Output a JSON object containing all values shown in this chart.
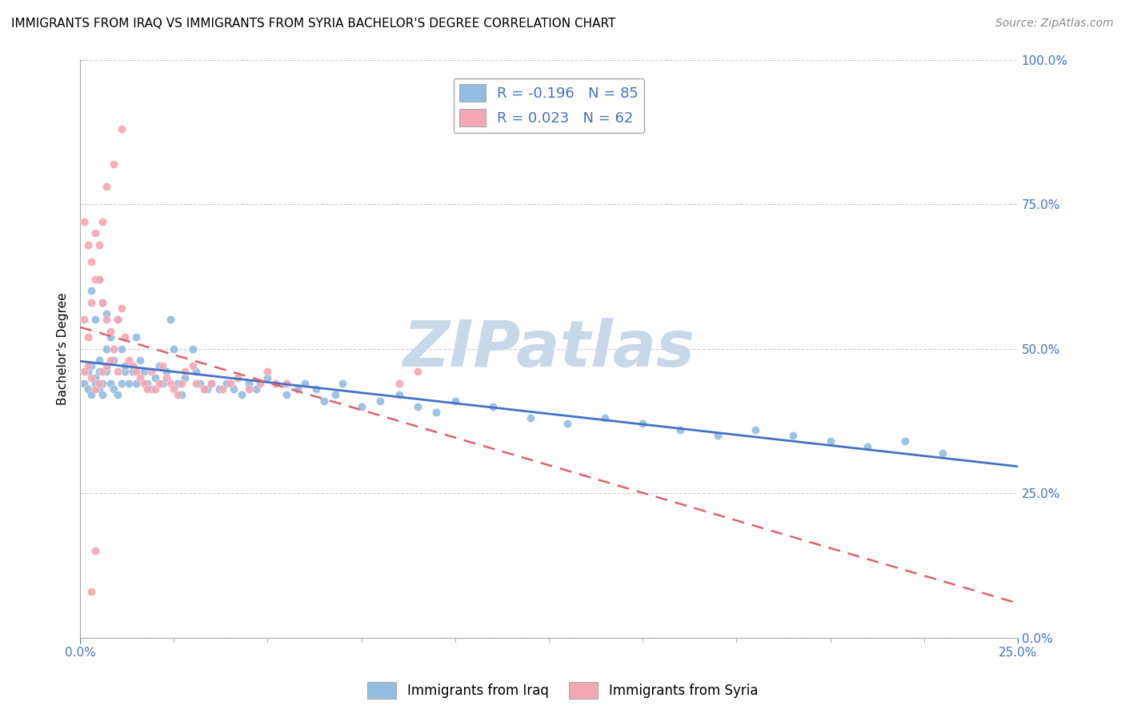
{
  "title": "IMMIGRANTS FROM IRAQ VS IMMIGRANTS FROM SYRIA BACHELOR'S DEGREE CORRELATION CHART",
  "source": "Source: ZipAtlas.com",
  "ylabel_label": "Bachelor's Degree",
  "legend_iraq": "Immigrants from Iraq",
  "legend_syria": "Immigrants from Syria",
  "iraq_R": -0.196,
  "iraq_N": 85,
  "syria_R": 0.023,
  "syria_N": 62,
  "blue_color": "#92bce0",
  "pink_color": "#f4a7b4",
  "blue_line_color": "#4472c4",
  "pink_line_color": "#e06070",
  "watermark": "ZIPatlas",
  "watermark_color": "#c8d8e8",
  "xmin": 0.0,
  "xmax": 0.25,
  "ymin": 0.0,
  "ymax": 1.0,
  "iraq_x": [
    0.001,
    0.002,
    0.002,
    0.003,
    0.003,
    0.004,
    0.004,
    0.005,
    0.005,
    0.005,
    0.006,
    0.006,
    0.007,
    0.007,
    0.008,
    0.008,
    0.009,
    0.009,
    0.01,
    0.01,
    0.011,
    0.011,
    0.012,
    0.012,
    0.013,
    0.014,
    0.015,
    0.015,
    0.016,
    0.017,
    0.018,
    0.019,
    0.02,
    0.021,
    0.022,
    0.023,
    0.024,
    0.025,
    0.026,
    0.027,
    0.028,
    0.03,
    0.031,
    0.032,
    0.034,
    0.035,
    0.037,
    0.039,
    0.041,
    0.043,
    0.045,
    0.047,
    0.05,
    0.052,
    0.055,
    0.058,
    0.06,
    0.063,
    0.065,
    0.068,
    0.07,
    0.075,
    0.08,
    0.085,
    0.09,
    0.095,
    0.1,
    0.11,
    0.12,
    0.13,
    0.14,
    0.15,
    0.16,
    0.17,
    0.18,
    0.19,
    0.2,
    0.21,
    0.22,
    0.23,
    0.003,
    0.004,
    0.005,
    0.006,
    0.007
  ],
  "iraq_y": [
    0.44,
    0.46,
    0.43,
    0.47,
    0.42,
    0.45,
    0.44,
    0.48,
    0.43,
    0.46,
    0.44,
    0.42,
    0.5,
    0.46,
    0.52,
    0.44,
    0.48,
    0.43,
    0.55,
    0.42,
    0.5,
    0.44,
    0.46,
    0.47,
    0.44,
    0.46,
    0.52,
    0.44,
    0.48,
    0.46,
    0.44,
    0.43,
    0.45,
    0.47,
    0.44,
    0.46,
    0.55,
    0.5,
    0.44,
    0.42,
    0.45,
    0.5,
    0.46,
    0.44,
    0.43,
    0.44,
    0.43,
    0.44,
    0.43,
    0.42,
    0.44,
    0.43,
    0.45,
    0.44,
    0.42,
    0.43,
    0.44,
    0.43,
    0.41,
    0.42,
    0.44,
    0.4,
    0.41,
    0.42,
    0.4,
    0.39,
    0.41,
    0.4,
    0.38,
    0.37,
    0.38,
    0.37,
    0.36,
    0.35,
    0.36,
    0.35,
    0.34,
    0.33,
    0.34,
    0.32,
    0.6,
    0.55,
    0.62,
    0.58,
    0.56
  ],
  "syria_x": [
    0.001,
    0.001,
    0.002,
    0.002,
    0.003,
    0.003,
    0.004,
    0.004,
    0.005,
    0.005,
    0.006,
    0.006,
    0.007,
    0.007,
    0.008,
    0.009,
    0.009,
    0.01,
    0.01,
    0.011,
    0.011,
    0.012,
    0.013,
    0.014,
    0.015,
    0.016,
    0.017,
    0.018,
    0.019,
    0.02,
    0.021,
    0.022,
    0.023,
    0.024,
    0.025,
    0.026,
    0.027,
    0.028,
    0.03,
    0.031,
    0.033,
    0.035,
    0.038,
    0.04,
    0.042,
    0.045,
    0.048,
    0.05,
    0.052,
    0.055,
    0.001,
    0.002,
    0.003,
    0.004,
    0.005,
    0.006,
    0.007,
    0.008,
    0.085,
    0.09,
    0.003,
    0.004
  ],
  "syria_y": [
    0.46,
    0.55,
    0.47,
    0.52,
    0.45,
    0.58,
    0.43,
    0.62,
    0.44,
    0.68,
    0.46,
    0.72,
    0.47,
    0.78,
    0.48,
    0.5,
    0.82,
    0.46,
    0.55,
    0.57,
    0.88,
    0.52,
    0.48,
    0.47,
    0.46,
    0.45,
    0.44,
    0.43,
    0.46,
    0.43,
    0.44,
    0.47,
    0.45,
    0.44,
    0.43,
    0.42,
    0.44,
    0.46,
    0.47,
    0.44,
    0.43,
    0.44,
    0.43,
    0.44,
    0.45,
    0.43,
    0.44,
    0.46,
    0.44,
    0.44,
    0.72,
    0.68,
    0.65,
    0.7,
    0.62,
    0.58,
    0.55,
    0.53,
    0.44,
    0.46,
    0.08,
    0.15
  ]
}
